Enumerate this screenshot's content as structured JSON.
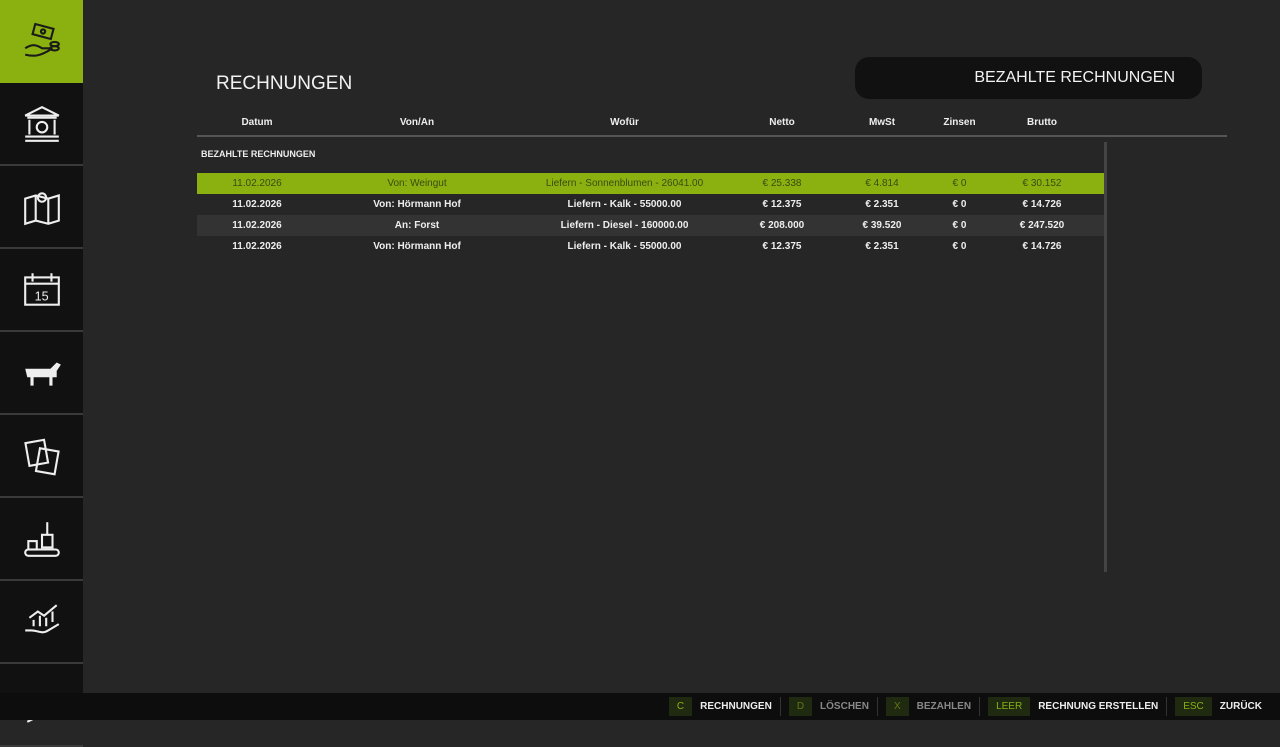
{
  "sidebar": {
    "items": [
      {
        "icon": "money-hand-icon",
        "active": true
      },
      {
        "icon": "bank-icon"
      },
      {
        "icon": "map-pin-icon"
      },
      {
        "icon": "calendar-icon",
        "label": "15"
      },
      {
        "icon": "cow-icon"
      },
      {
        "icon": "documents-icon"
      },
      {
        "icon": "production-icon"
      },
      {
        "icon": "growth-chart-hand-icon"
      },
      {
        "icon": "check-icon"
      }
    ]
  },
  "page_title": "RECHNUNGEN",
  "filter_button": "BEZAHLTE RECHNUNGEN",
  "table": {
    "columns": [
      "Datum",
      "Von/An",
      "Wofür",
      "Netto",
      "MwSt",
      "Zinsen",
      "Brutto"
    ],
    "section": "BEZAHLTE RECHNUNGEN",
    "rows": [
      [
        "11.02.2026",
        "Von: Weingut",
        "Liefern - Sonnenblumen - 26041.00",
        "€ 25.338",
        "€ 4.814",
        "€ 0",
        "€ 30.152"
      ],
      [
        "11.02.2026",
        "Von: Hörmann Hof",
        "Liefern - Kalk - 55000.00",
        "€ 12.375",
        "€ 2.351",
        "€ 0",
        "€ 14.726"
      ],
      [
        "11.02.2026",
        "An: Forst",
        "Liefern - Diesel - 160000.00",
        "€ 208.000",
        "€ 39.520",
        "€ 0",
        "€ 247.520"
      ],
      [
        "11.02.2026",
        "Von: Hörmann Hof",
        "Liefern - Kalk - 55000.00",
        "€ 12.375",
        "€ 2.351",
        "€ 0",
        "€ 14.726"
      ]
    ]
  },
  "actions": [
    {
      "key": "C",
      "label": "RECHNUNGEN"
    },
    {
      "key": "D",
      "label": "LÖSCHEN"
    },
    {
      "key": "X",
      "label": "BEZAHLEN"
    },
    {
      "key": "LEER",
      "label": "RECHNUNG ERSTELLEN"
    },
    {
      "key": "ESC",
      "label": "ZURÜCK"
    }
  ],
  "colors": {
    "accent": "#8ab10f",
    "background": "#262626",
    "sidebar": "#111111"
  }
}
